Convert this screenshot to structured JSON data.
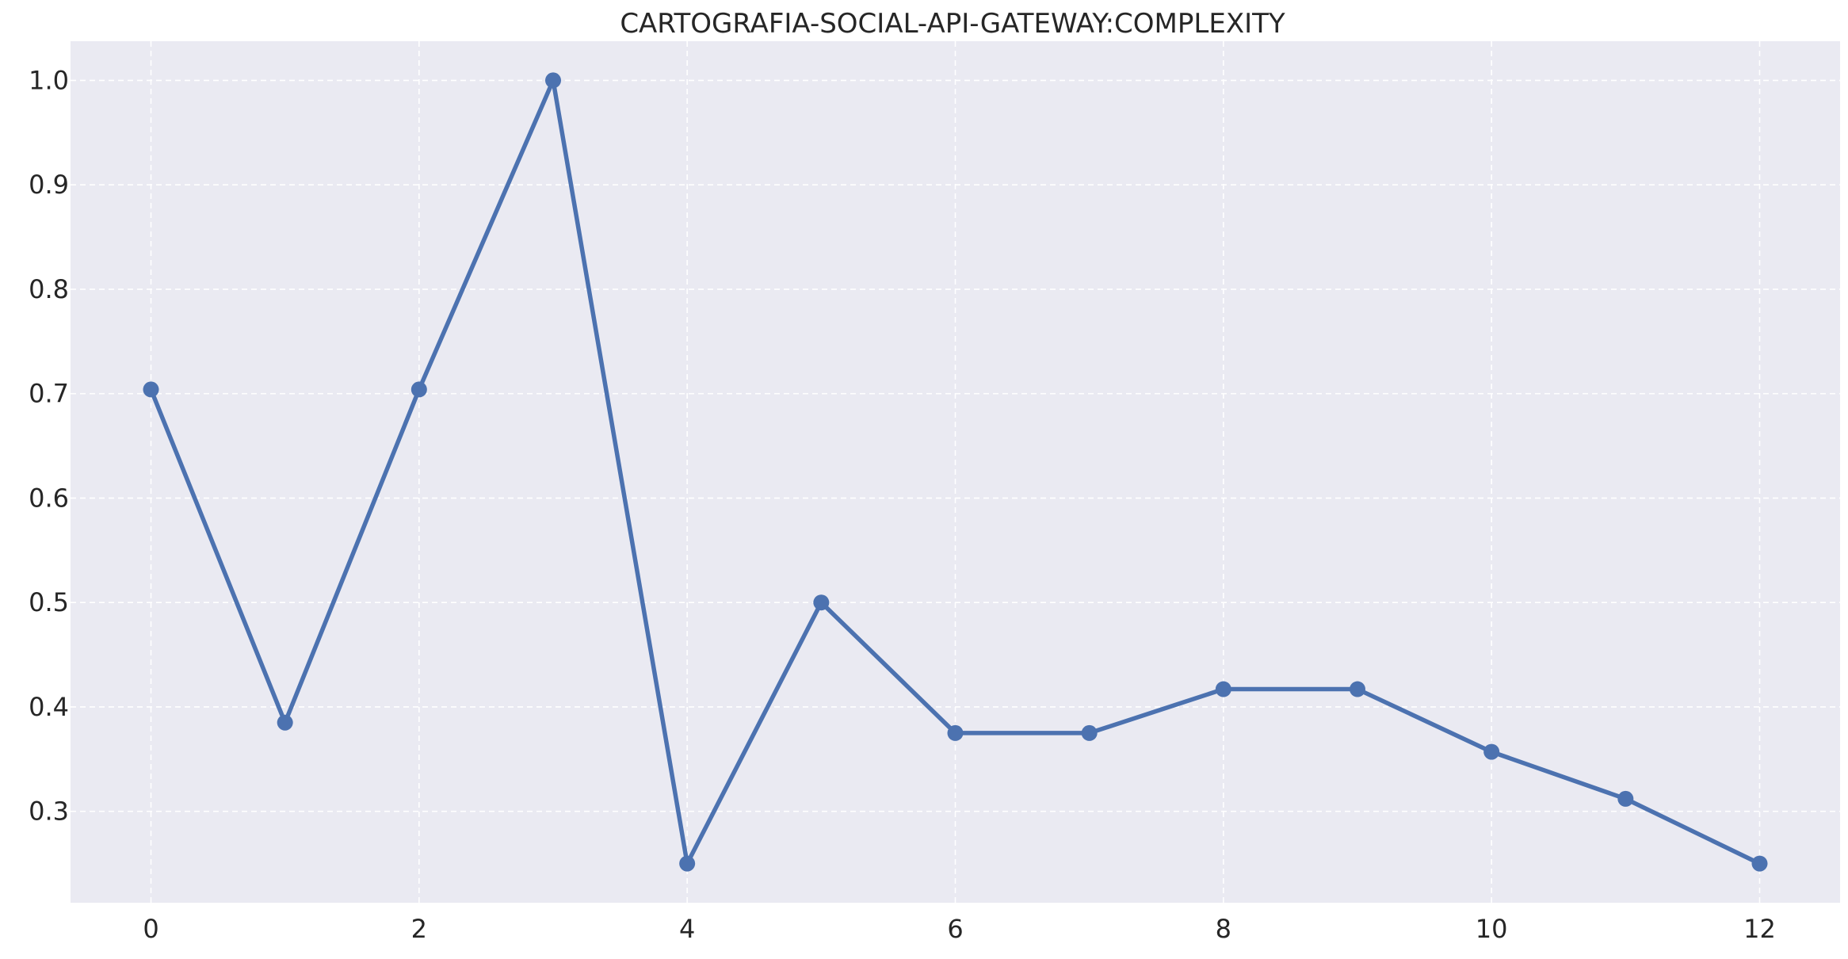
{
  "chart_data": {
    "type": "line",
    "title": "CARTOGRAFIA-SOCIAL-API-GATEWAY:COMPLEXITY",
    "xlabel": "",
    "ylabel": "",
    "x": [
      0,
      1,
      2,
      3,
      4,
      5,
      6,
      7,
      8,
      9,
      10,
      11,
      12
    ],
    "series": [
      {
        "values": [
          0.704,
          0.385,
          0.704,
          1.0,
          0.25,
          0.5,
          0.375,
          0.375,
          0.417,
          0.417,
          0.357,
          0.312,
          0.25
        ]
      }
    ],
    "xlim": [
      -0.6,
      12.6
    ],
    "ylim": [
      0.2125,
      1.0375
    ],
    "x_ticks": [
      0,
      2,
      4,
      6,
      8,
      10,
      12
    ],
    "x_tick_labels": [
      "0",
      "2",
      "4",
      "6",
      "8",
      "10",
      "12"
    ],
    "y_ticks": [
      0.3,
      0.4,
      0.5,
      0.6,
      0.7,
      0.8,
      0.9,
      1.0
    ],
    "y_tick_labels": [
      "0.3",
      "0.4",
      "0.5",
      "0.6",
      "0.7",
      "0.8",
      "0.9",
      "1.0"
    ],
    "grid": true,
    "legend": "none",
    "colors": {
      "series": "#4c72b0",
      "plot_background": "#eaeaf2",
      "grid": "#ffffff"
    }
  }
}
